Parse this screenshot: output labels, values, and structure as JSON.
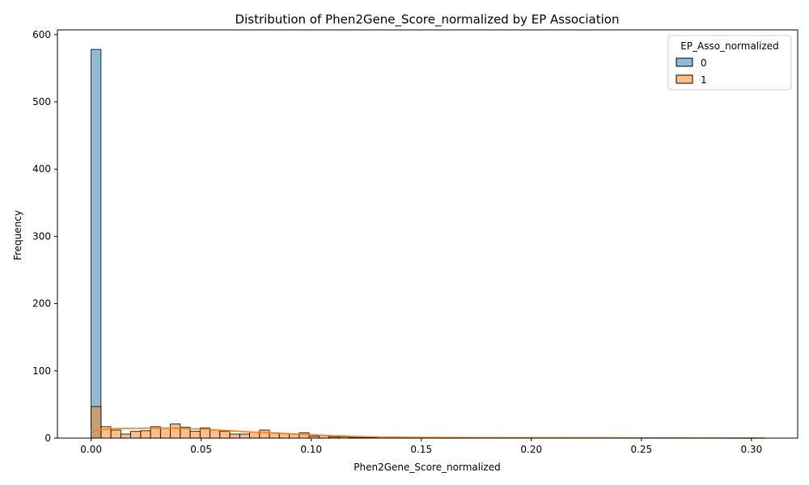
{
  "chart_data": {
    "type": "bar",
    "subtype": "histogram",
    "title": "Distribution of Phen2Gene_Score_normalized by EP Association",
    "xlabel": "Phen2Gene_Score_normalized",
    "ylabel": "Frequency",
    "xlim": [
      -0.0153,
      0.321
    ],
    "ylim": [
      0,
      607
    ],
    "x_ticks": [
      0.0,
      0.05,
      0.1,
      0.15,
      0.2,
      0.25,
      0.3
    ],
    "x_tick_labels": [
      "0.00",
      "0.05",
      "0.10",
      "0.15",
      "0.20",
      "0.25",
      "0.30"
    ],
    "y_ticks": [
      0,
      100,
      200,
      300,
      400,
      500,
      600
    ],
    "y_tick_labels": [
      "0",
      "100",
      "200",
      "300",
      "400",
      "500",
      "600"
    ],
    "bin_width": 0.0045,
    "grid": false,
    "legend": {
      "title": "EP_Asso_normalized",
      "placement": "top-right",
      "entries": [
        {
          "label": "0",
          "color": "#1f77b4"
        },
        {
          "label": "1",
          "color": "#ff7f0e"
        }
      ]
    },
    "series": [
      {
        "name": "0",
        "color": "#1f77b4",
        "bins": [
          {
            "x_start": 0.0,
            "x_end": 0.0045,
            "count": 578
          }
        ]
      },
      {
        "name": "1",
        "color": "#ff7f0e",
        "bin_starts": [
          0.0,
          0.0045,
          0.009,
          0.0135,
          0.018,
          0.0225,
          0.027,
          0.0315,
          0.036,
          0.0405,
          0.045,
          0.0495,
          0.054,
          0.0585,
          0.063,
          0.0675,
          0.072,
          0.0765,
          0.081,
          0.0855,
          0.09,
          0.0945,
          0.099,
          0.1035,
          0.108,
          0.1125,
          0.117,
          0.1215,
          0.126
        ],
        "counts": [
          47,
          17,
          12,
          6,
          10,
          11,
          17,
          15,
          21,
          16,
          10,
          15,
          12,
          10,
          6,
          6,
          9,
          12,
          8,
          7,
          6,
          8,
          3,
          4,
          2,
          2,
          1,
          1,
          1
        ]
      }
    ],
    "kde": {
      "series": "1",
      "color": "#ff7f0e",
      "x": [
        0.0,
        0.01,
        0.02,
        0.03,
        0.04,
        0.05,
        0.06,
        0.07,
        0.08,
        0.09,
        0.1,
        0.11,
        0.12,
        0.13,
        0.14,
        0.15,
        0.2,
        0.25,
        0.3,
        0.306
      ],
      "y": [
        11,
        14,
        14.5,
        15,
        14.5,
        13.5,
        11.5,
        9.5,
        8,
        6.5,
        5,
        3.5,
        2.5,
        1.8,
        1.3,
        1,
        0.5,
        0.3,
        0.1,
        0.1
      ]
    }
  }
}
